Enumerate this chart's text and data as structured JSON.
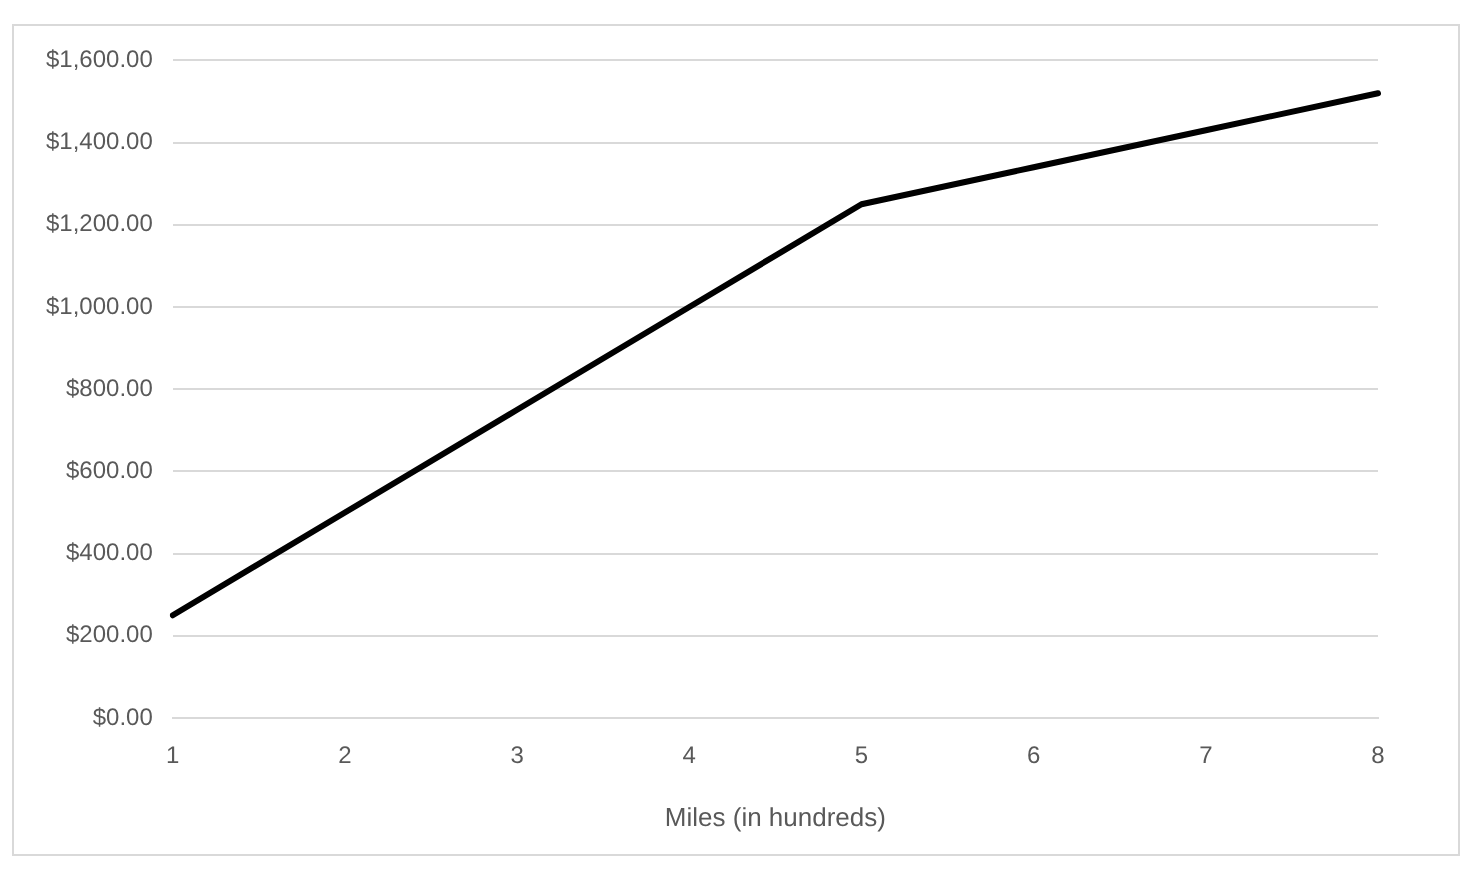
{
  "chart_data": {
    "type": "line",
    "xlabel": "Miles (in hundreds)",
    "categories": [
      "1",
      "2",
      "3",
      "4",
      "5",
      "6",
      "7",
      "8"
    ],
    "series": [
      {
        "color": "#000000",
        "values": [
          250,
          500,
          750,
          1000,
          1250,
          1340,
          1430,
          1520
        ]
      }
    ],
    "ylim": [
      0,
      1600
    ],
    "yticks": [
      {
        "value": 0,
        "label": "$0.00"
      },
      {
        "value": 200,
        "label": "$200.00"
      },
      {
        "value": 400,
        "label": "$400.00"
      },
      {
        "value": 600,
        "label": "$600.00"
      },
      {
        "value": 800,
        "label": "$800.00"
      },
      {
        "value": 1000,
        "label": "$1,000.00"
      },
      {
        "value": 1200,
        "label": "$1,200.00"
      },
      {
        "value": 1400,
        "label": "$1,400.00"
      },
      {
        "value": 1600,
        "label": "$1,600.00"
      }
    ],
    "grid": "y",
    "legend": false,
    "marker": "none",
    "line_style": "solid"
  }
}
